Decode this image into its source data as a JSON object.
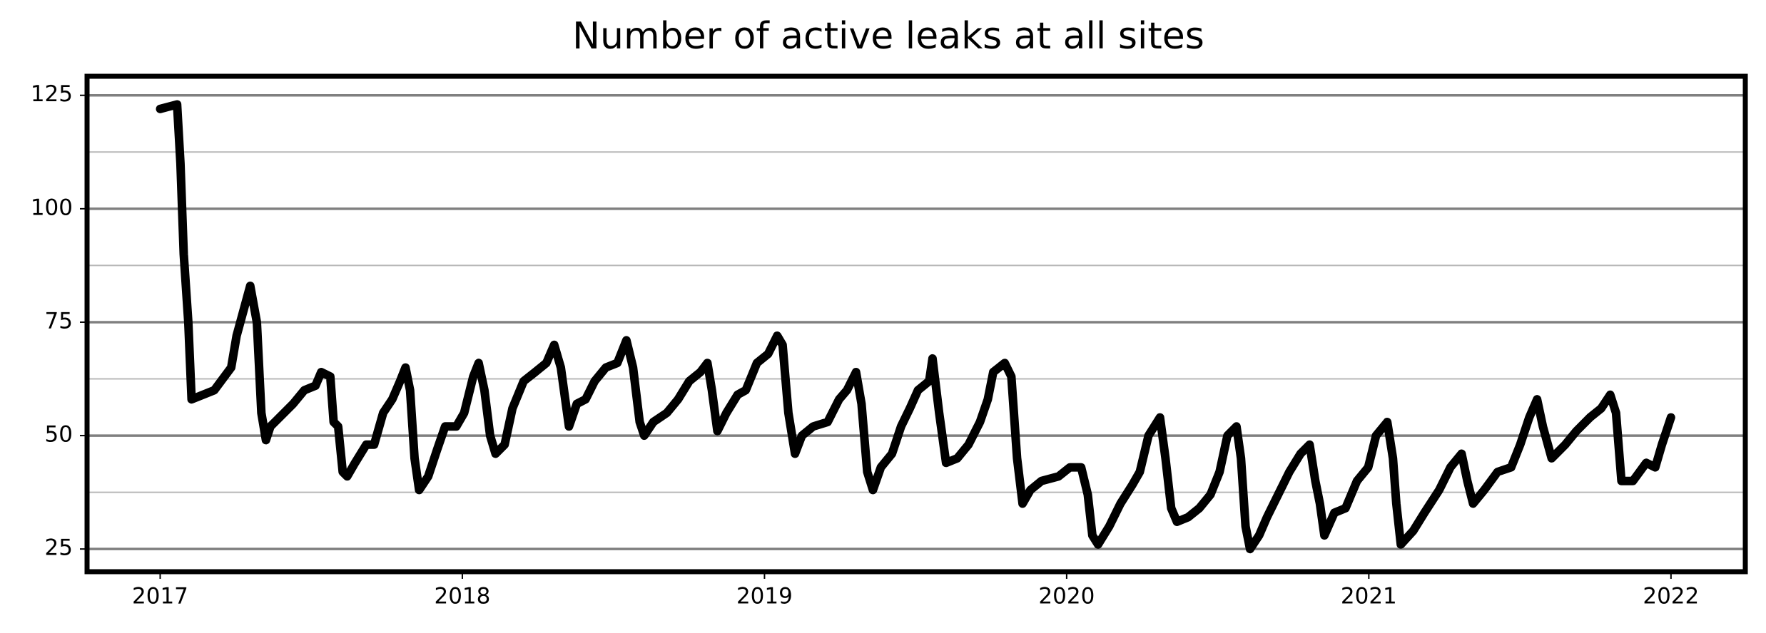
{
  "chart_data": {
    "type": "line",
    "title": "Number of active leaks at all sites",
    "x": [
      2017.0,
      2017.056,
      2017.067,
      2017.078,
      2017.093,
      2017.104,
      2017.179,
      2017.235,
      2017.253,
      2017.298,
      2017.32,
      2017.335,
      2017.35,
      2017.365,
      2017.44,
      2017.477,
      2017.514,
      2017.533,
      2017.563,
      2017.574,
      2017.589,
      2017.604,
      2017.619,
      2017.645,
      2017.682,
      2017.708,
      2017.738,
      2017.768,
      2017.794,
      2017.812,
      2017.827,
      2017.842,
      2017.857,
      2017.887,
      2017.917,
      2017.943,
      2017.98,
      2018.006,
      2018.036,
      2018.054,
      2018.073,
      2018.092,
      2018.11,
      2018.14,
      2018.166,
      2018.203,
      2018.241,
      2018.278,
      2018.304,
      2018.326,
      2018.353,
      2018.379,
      2018.408,
      2018.438,
      2018.475,
      2018.513,
      2018.543,
      2018.565,
      2018.587,
      2018.602,
      2018.632,
      2018.677,
      2018.714,
      2018.751,
      2018.788,
      2018.811,
      2018.826,
      2018.844,
      2018.874,
      2018.911,
      2018.938,
      2018.975,
      2019.012,
      2019.042,
      2019.06,
      2019.079,
      2019.101,
      2019.124,
      2019.161,
      2019.209,
      2019.247,
      2019.273,
      2019.303,
      2019.321,
      2019.34,
      2019.359,
      2019.385,
      2019.422,
      2019.452,
      2019.481,
      2019.508,
      2019.545,
      2019.556,
      2019.578,
      2019.601,
      2019.638,
      2019.675,
      2019.713,
      2019.739,
      2019.757,
      2019.795,
      2019.817,
      2019.836,
      2019.854,
      2019.88,
      2019.917,
      2019.973,
      2020.011,
      2020.048,
      2020.07,
      2020.085,
      2020.104,
      2020.141,
      2020.178,
      2020.216,
      2020.242,
      2020.271,
      2020.309,
      2020.327,
      2020.346,
      2020.365,
      2020.402,
      2020.439,
      2020.476,
      2020.506,
      2020.532,
      2020.562,
      2020.577,
      2020.592,
      2020.607,
      2020.637,
      2020.663,
      2020.7,
      2020.737,
      2020.774,
      2020.804,
      2020.823,
      2020.838,
      2020.853,
      2020.886,
      2020.923,
      2020.961,
      2020.998,
      2021.024,
      2021.061,
      2021.08,
      2021.091,
      2021.106,
      2021.147,
      2021.184,
      2021.233,
      2021.27,
      2021.307,
      2021.326,
      2021.345,
      2021.382,
      2021.426,
      2021.471,
      2021.501,
      2021.531,
      2021.557,
      2021.576,
      2021.605,
      2021.65,
      2021.687,
      2021.732,
      2021.769,
      2021.799,
      2021.818,
      2021.836,
      2021.874,
      2021.918,
      2021.948,
      2021.97,
      2022.0
    ],
    "values": [
      122,
      123,
      110,
      90,
      75,
      58,
      60,
      65,
      72,
      83,
      75,
      55,
      49,
      52,
      57,
      60,
      61,
      64,
      63,
      53,
      52,
      42,
      41,
      44,
      48,
      48,
      55,
      58,
      62,
      65,
      60,
      45,
      38,
      41,
      47,
      52,
      52,
      55,
      63,
      66,
      60,
      50,
      46,
      48,
      56,
      62,
      64,
      66,
      70,
      65,
      52,
      57,
      58,
      62,
      65,
      66,
      71,
      65,
      53,
      50,
      53,
      55,
      58,
      62,
      64,
      66,
      60,
      51,
      55,
      59,
      60,
      66,
      68,
      72,
      70,
      55,
      46,
      50,
      52,
      53,
      58,
      60,
      64,
      57,
      42,
      38,
      43,
      46,
      52,
      56,
      60,
      62,
      67,
      55,
      44,
      45,
      48,
      53,
      58,
      64,
      66,
      63,
      45,
      35,
      38,
      40,
      41,
      43,
      43,
      37,
      28,
      26,
      30,
      35,
      39,
      42,
      50,
      54,
      45,
      34,
      31,
      32,
      34,
      37,
      42,
      50,
      52,
      45,
      30,
      25,
      28,
      32,
      37,
      42,
      46,
      48,
      40,
      35,
      28,
      33,
      34,
      40,
      43,
      50,
      53,
      45,
      35,
      26,
      29,
      33,
      38,
      43,
      46,
      40,
      35,
      38,
      42,
      43,
      48,
      54,
      58,
      52,
      45,
      48,
      51,
      54,
      56,
      59,
      55,
      40,
      40,
      44,
      43,
      48,
      54
    ],
    "color": "#000000",
    "xlim": [
      2016.758,
      2022.246
    ],
    "xticks": [
      2017,
      2018,
      2019,
      2020,
      2021,
      2022
    ],
    "ylim": [
      20,
      129.2
    ],
    "yticks": [
      25,
      50,
      75,
      100,
      125
    ],
    "yminor": [
      37.5,
      62.5,
      87.5,
      112.5
    ],
    "grid": true
  }
}
